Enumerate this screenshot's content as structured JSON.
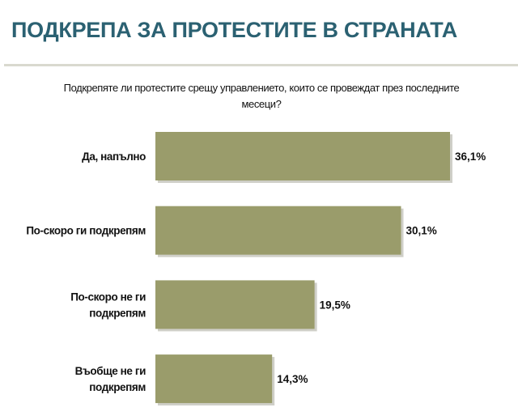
{
  "header": {
    "title": "ПОДКРЕПА ЗА ПРОТЕСТИТЕ В СТРАНАТА"
  },
  "chart_data": {
    "type": "bar",
    "orientation": "horizontal",
    "title": "Подкрепяте ли протестите срещу управлението, които се провеждат през последните месеци?",
    "categories": [
      [
        "Да, напълно"
      ],
      [
        "По-скоро ги подкрепям"
      ],
      [
        "По-скоро не ги",
        "подкрепям"
      ],
      [
        "Въобще не ги",
        "подкрепям"
      ]
    ],
    "values": [
      36.1,
      30.1,
      19.5,
      14.3
    ],
    "value_labels": [
      "36,1%",
      "30,1%",
      "19,5%",
      "14,3%"
    ],
    "xlabel": "",
    "ylabel": "",
    "xlim": [
      0,
      40
    ],
    "grid": false,
    "bar_color": "#9a9c6b"
  }
}
